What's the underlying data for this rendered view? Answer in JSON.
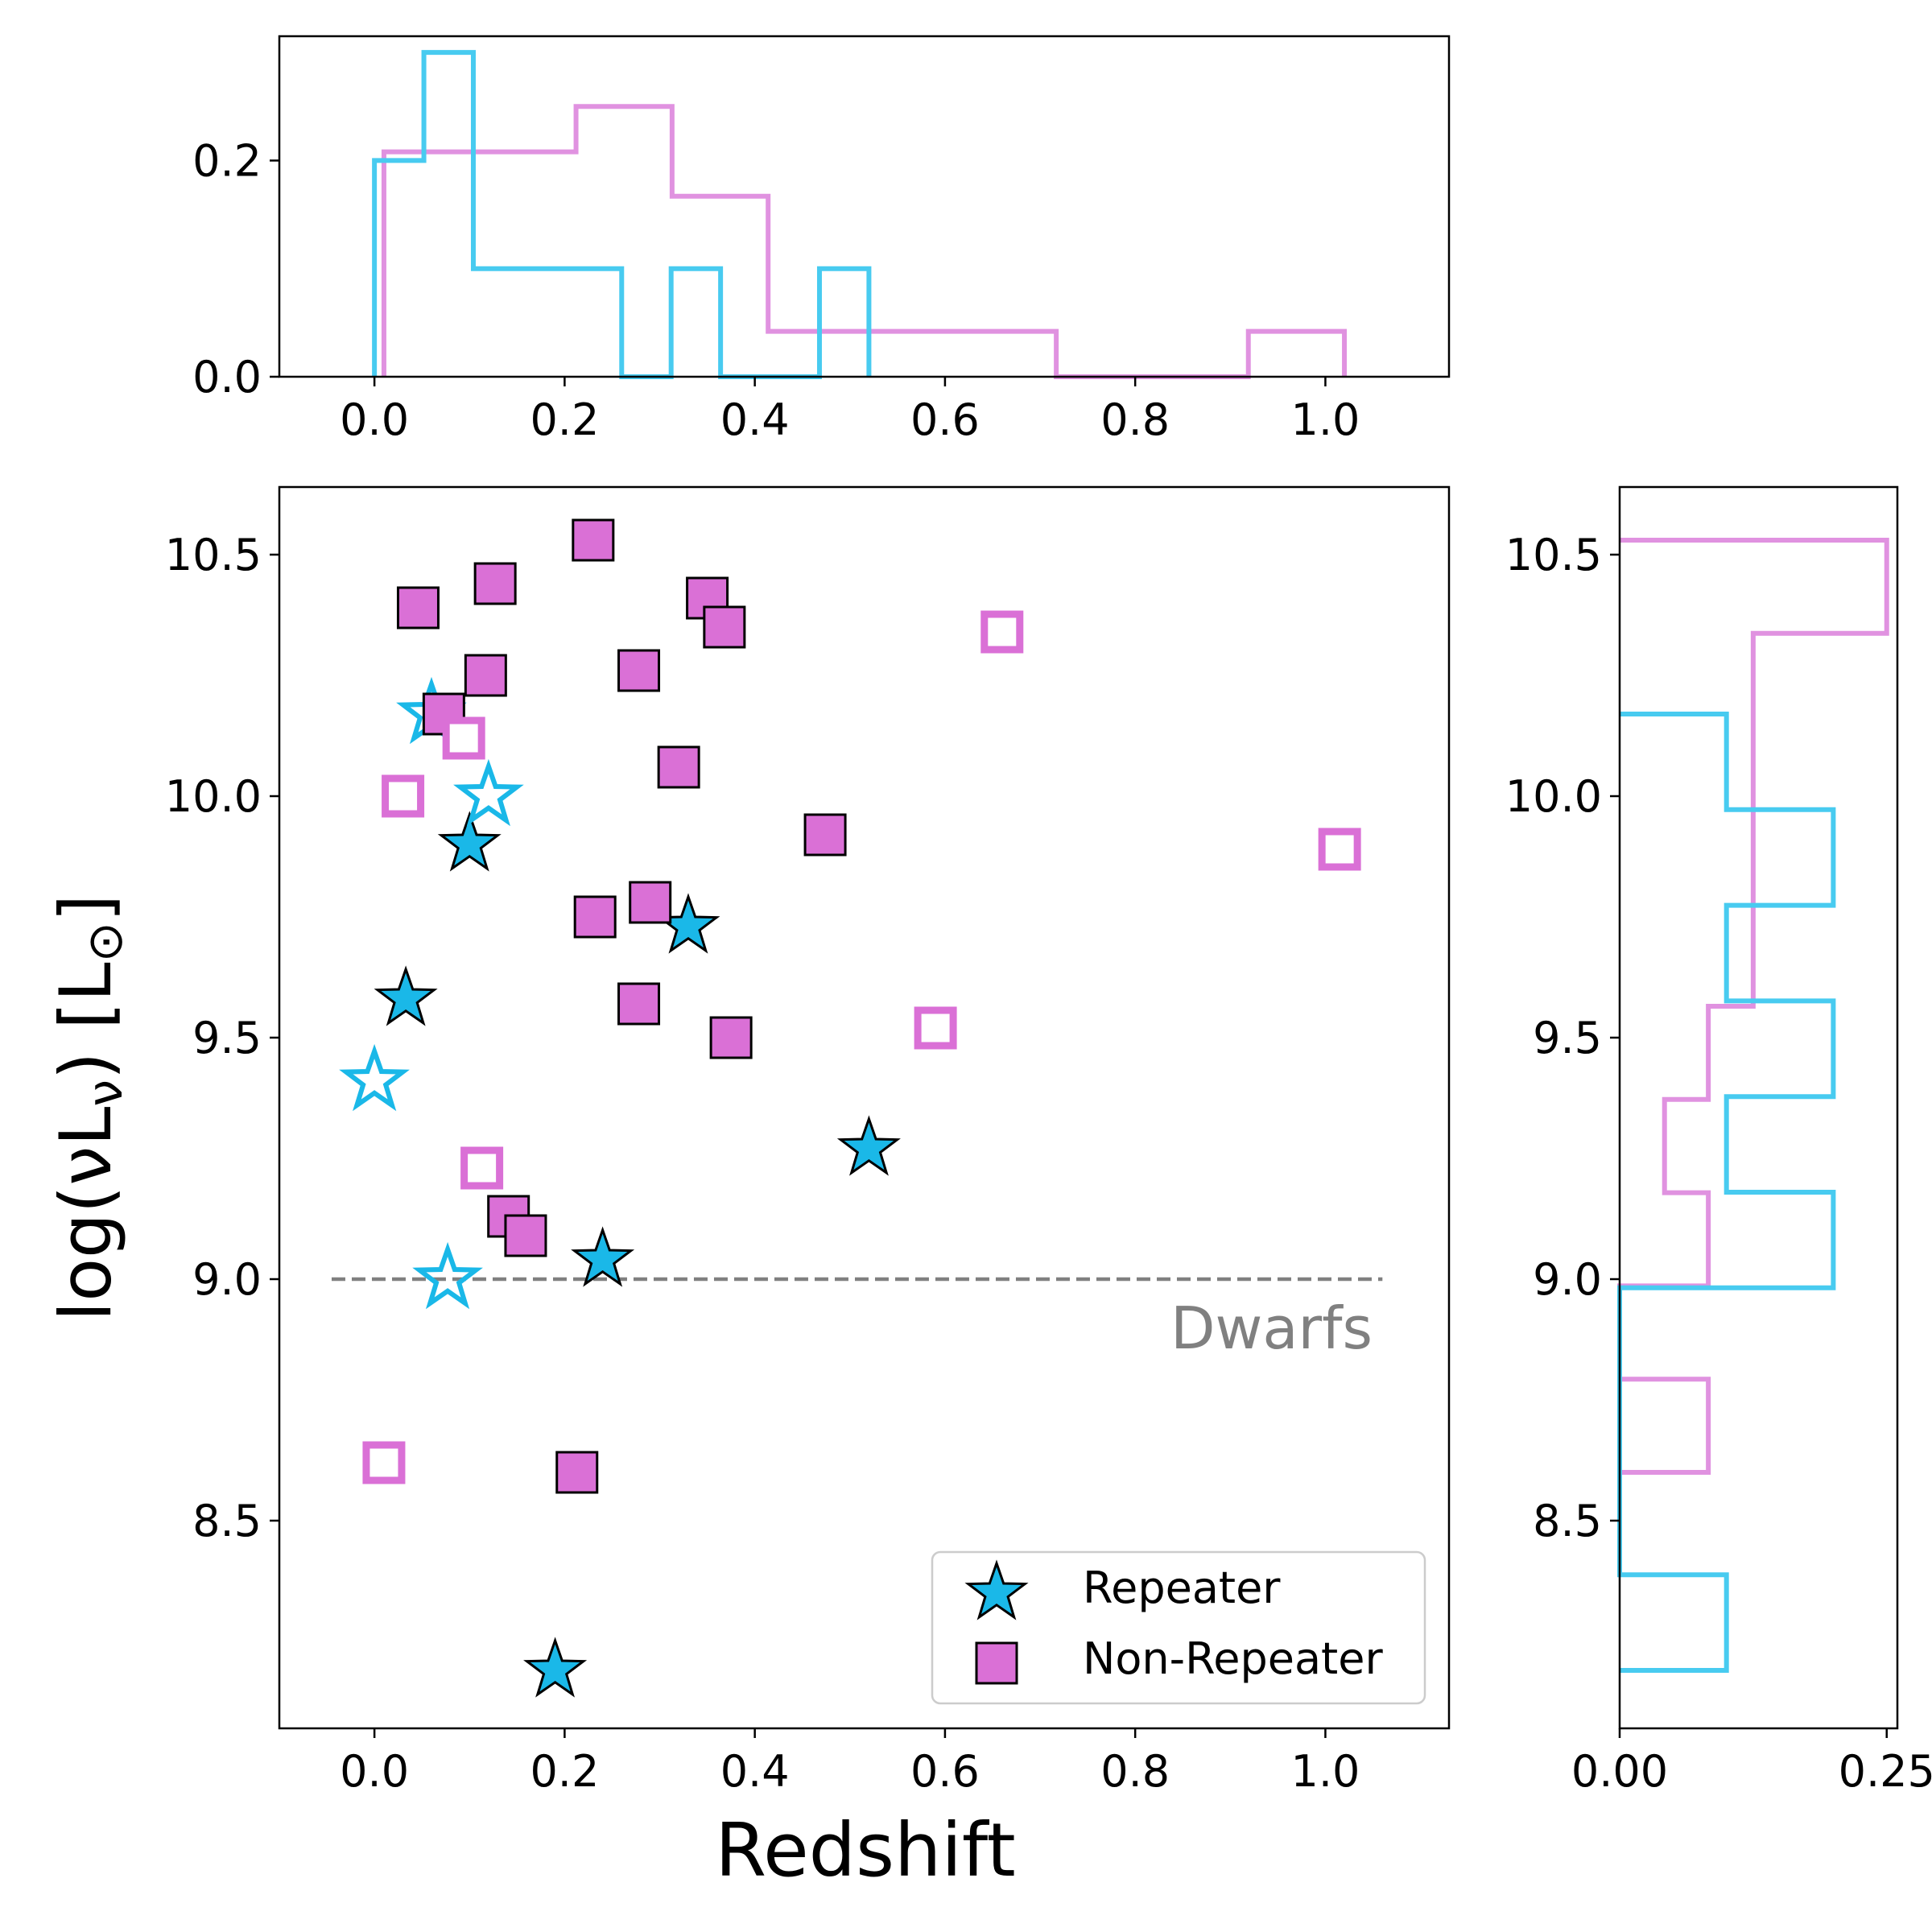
{
  "chart_data": {
    "type": "scatter",
    "colors": {
      "repeater": "#1ab8e8",
      "repeater_hist": "#48cbf0",
      "nonrepeater": "#da70d6",
      "nonrepeater_hist": "#e092e0",
      "dwarf_line": "#808080",
      "dwarf_text": "#808080"
    },
    "main": {
      "xlabel": "Redshift",
      "ylabel": "log(νL",
      "ylabel_sub": "ν",
      "ylabel_unit": ") [L",
      "ylabel_sun": "⊙",
      "ylabel_end": "]",
      "xlim": [
        -0.1,
        1.13
      ],
      "ylim": [
        8.07,
        10.64
      ],
      "xticks": [
        0.0,
        0.2,
        0.4,
        0.6,
        0.8,
        1.0
      ],
      "xtick_labels": [
        "0.0",
        "0.2",
        "0.4",
        "0.6",
        "0.8",
        "1.0"
      ],
      "yticks": [
        8.5,
        9.0,
        9.5,
        10.0,
        10.5
      ],
      "ytick_labels": [
        "8.5",
        "9.0",
        "9.5",
        "10.0",
        "10.5"
      ],
      "dwarf_line": {
        "y": 9.0,
        "x_range": [
          -0.045,
          1.06
        ],
        "label": "Dwarfs"
      },
      "legend": {
        "location": "lower-right",
        "entries": [
          "Repeater",
          "Non-Repeater"
        ]
      },
      "series": [
        {
          "name": "Repeater",
          "marker": "star",
          "filled": true,
          "points": [
            [
              0.1,
              9.9
            ],
            [
              0.033,
              9.58
            ],
            [
              0.33,
              9.73
            ],
            [
              0.52,
              9.27
            ],
            [
              0.24,
              9.04
            ],
            [
              0.19,
              8.19
            ]
          ]
        },
        {
          "name": "Repeater (open)",
          "marker": "star",
          "filled": false,
          "points": [
            [
              0.06,
              10.17
            ],
            [
              0.12,
              10.0
            ],
            [
              0.0,
              9.41
            ],
            [
              0.077,
              9.0
            ]
          ]
        },
        {
          "name": "Non-Repeater",
          "marker": "square",
          "filled": true,
          "points": [
            [
              0.23,
              10.53
            ],
            [
              0.046,
              10.39
            ],
            [
              0.127,
              10.44
            ],
            [
              0.35,
              10.41
            ],
            [
              0.368,
              10.35
            ],
            [
              0.117,
              10.25
            ],
            [
              0.278,
              10.26
            ],
            [
              0.073,
              10.17
            ],
            [
              0.32,
              10.06
            ],
            [
              0.474,
              9.92
            ],
            [
              0.29,
              9.78
            ],
            [
              0.232,
              9.75
            ],
            [
              0.278,
              9.57
            ],
            [
              0.375,
              9.5
            ],
            [
              0.141,
              9.13
            ],
            [
              0.159,
              9.09
            ],
            [
              0.213,
              8.6
            ]
          ]
        },
        {
          "name": "Non-Repeater (open)",
          "marker": "square",
          "filled": false,
          "points": [
            [
              0.66,
              10.34
            ],
            [
              0.094,
              10.12
            ],
            [
              0.03,
              10.0
            ],
            [
              1.015,
              9.89
            ],
            [
              0.59,
              9.52
            ],
            [
              0.113,
              9.23
            ],
            [
              0.01,
              8.62
            ]
          ]
        }
      ]
    },
    "top_hist": {
      "xlim": [
        -0.1,
        1.13
      ],
      "ylim": [
        0.0,
        0.315
      ],
      "yticks": [
        0.0,
        0.2
      ],
      "ytick_labels": [
        "0.0",
        "0.2"
      ],
      "xticks": [
        0.0,
        0.2,
        0.4,
        0.6,
        0.8,
        1.0
      ],
      "xtick_labels": [
        "0.0",
        "0.2",
        "0.4",
        "0.6",
        "0.8",
        "1.0"
      ],
      "series": [
        {
          "name": "Repeater",
          "edges": [
            0.0,
            0.052,
            0.104,
            0.156,
            0.208,
            0.26,
            0.312,
            0.364,
            0.416,
            0.468,
            0.52
          ],
          "heights": [
            0.2,
            0.3,
            0.1,
            0.1,
            0.1,
            0.0,
            0.1,
            0.0,
            0.0,
            0.1
          ]
        },
        {
          "name": "Non-Repeater",
          "edges": [
            0.01,
            0.111,
            0.212,
            0.313,
            0.414,
            0.515,
            0.616,
            0.717,
            0.818,
            0.919,
            1.02
          ],
          "heights": [
            0.208,
            0.208,
            0.25,
            0.167,
            0.042,
            0.042,
            0.042,
            0.0,
            0.0,
            0.042
          ]
        }
      ]
    },
    "right_hist": {
      "xlim": [
        0.0,
        0.26
      ],
      "ylim": [
        8.07,
        10.64
      ],
      "xticks": [
        0.0,
        0.25
      ],
      "xtick_labels": [
        "0.00",
        "0.25"
      ],
      "yticks": [
        8.5,
        9.0,
        9.5,
        10.0,
        10.5
      ],
      "ytick_labels": [
        "8.5",
        "9.0",
        "9.5",
        "10.0",
        "10.5"
      ],
      "series": [
        {
          "name": "Repeater",
          "edges": [
            8.19,
            8.388,
            8.586,
            8.784,
            8.982,
            9.18,
            9.378,
            9.576,
            9.774,
            9.972,
            10.17
          ],
          "widths": [
            0.1,
            0.0,
            0.0,
            0.0,
            0.2,
            0.1,
            0.2,
            0.1,
            0.2,
            0.1
          ]
        },
        {
          "name": "Non-Repeater",
          "edges": [
            8.6,
            8.793,
            8.986,
            9.179,
            9.372,
            9.565,
            9.758,
            9.951,
            10.144,
            10.337,
            10.53
          ],
          "widths": [
            0.083,
            0.0,
            0.083,
            0.042,
            0.083,
            0.125,
            0.125,
            0.125,
            0.125,
            0.25
          ]
        }
      ]
    }
  }
}
